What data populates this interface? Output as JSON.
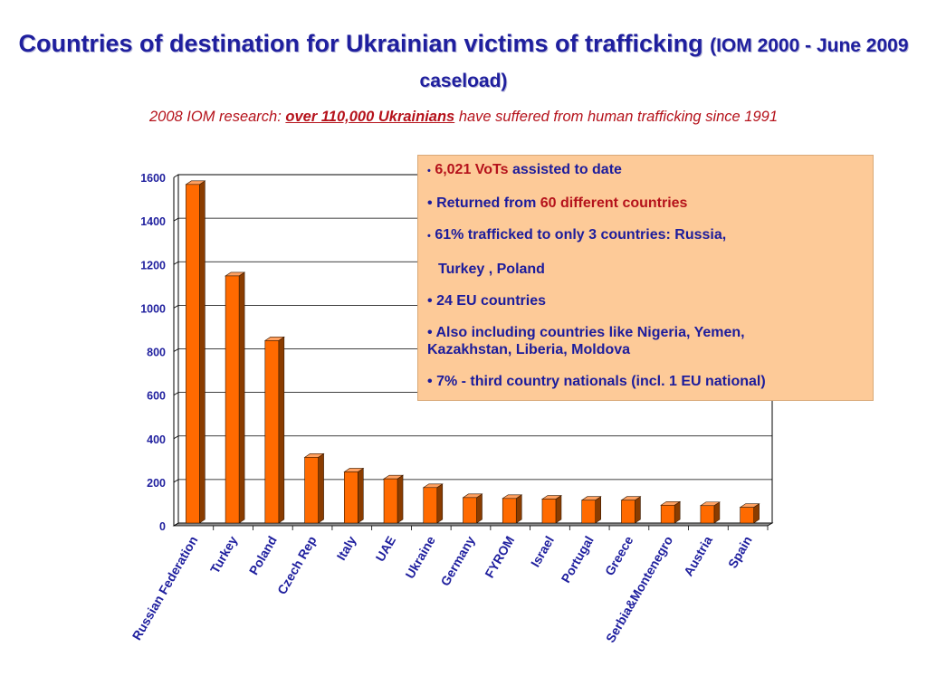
{
  "title": {
    "main": "Countries of destination for Ukrainian victims of trafficking",
    "sub": "(IOM 2000 - June 2009 caseload)"
  },
  "subtitle": {
    "prefix": "2008 IOM research:",
    "highlight": "over 110,000 Ukrainians",
    "suffix": "have suffered from human trafficking since 1991"
  },
  "infobox": {
    "bullet": "•",
    "b1_red": "6,021 VoTs",
    "b1_text": "assisted to date",
    "b2_text": "Returned from",
    "b2_red": "60 different countries",
    "b3_line1": "61% trafficked to only 3 countries: Russia,",
    "b3_line2": "Turkey , Poland",
    "b4_text": "24 EU countries",
    "b5_line1": "Also including countries like Nigeria, Yemen,",
    "b5_line2": "Kazakhstan, Liberia, Moldova",
    "b6_text": "7% - third country nationals (incl. 1 EU national)"
  },
  "colors": {
    "bar_front": "#ff6a00",
    "bar_side": "#8a3c00",
    "bar_top": "#ffa060",
    "axis_text": "#1f1f9e",
    "title_blue": "#1f1f9e",
    "accent_red": "#b5121b",
    "box_fill": "#fdca98"
  },
  "chart_data": {
    "type": "bar",
    "categories": [
      "Russian Federation",
      "Turkey",
      "Poland",
      "Czech Rep",
      "Italy",
      "UAE",
      "Ukraine",
      "Germany",
      "FYROM",
      "Israel",
      "Portugal",
      "Greece",
      "Serbia&Montenegro",
      "Austria",
      "Spain"
    ],
    "values": [
      1555,
      1135,
      838,
      302,
      235,
      203,
      163,
      117,
      113,
      110,
      105,
      105,
      82,
      80,
      72
    ],
    "yticks": [
      0,
      200,
      400,
      600,
      800,
      1000,
      1200,
      1400,
      1600
    ],
    "ylim": [
      0,
      1600
    ],
    "grid": true,
    "style": "3d"
  }
}
